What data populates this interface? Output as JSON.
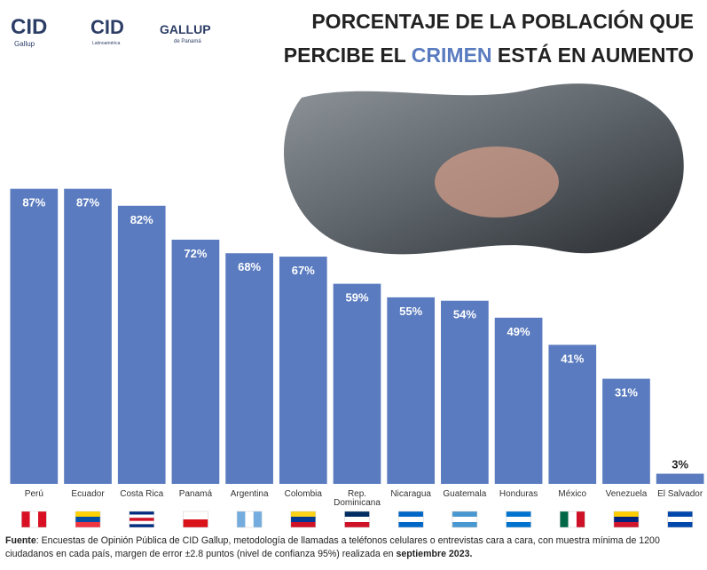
{
  "chart_data": {
    "type": "bar",
    "logos": [
      "CID",
      "Gallup",
      "CID",
      "Latinoamérica",
      "GALLUP",
      "de Panamá"
    ],
    "title_line1": "PORCENTAJE DE LA POBLACIÓN QUE",
    "title_line2_before": "PERCIBE EL",
    "title_highlight": "CRIMEN",
    "title_line2_after": "ESTÁ EN AUMENTO",
    "categories": [
      "Perú",
      "Ecuador",
      "Costa Rica",
      "Panamá",
      "Argentina",
      "Colombia",
      "Rep. Dominicana",
      "Nicaragua",
      "Guatemala",
      "Honduras",
      "México",
      "Venezuela",
      "El Salvador"
    ],
    "values": [
      87,
      87,
      82,
      72,
      68,
      67,
      59,
      55,
      54,
      49,
      41,
      31,
      3
    ],
    "value_labels": [
      "87%",
      "87%",
      "82%",
      "72%",
      "68%",
      "67%",
      "59%",
      "55%",
      "54%",
      "49%",
      "41%",
      "31%",
      "3%"
    ],
    "color": "#5a7bbf",
    "source_label": "Fuente",
    "source_text": ": Encuestas de Opinión Pública de CID Gallup, metodología de llamadas a teléfonos celulares o entrevistas cara a cara, con muestra mínima de 1200 ciudadanos en cada país, margen de error ±2.8 puntos (nivel de confianza 95%) realizada en",
    "source_date": "septiembre 2023."
  }
}
